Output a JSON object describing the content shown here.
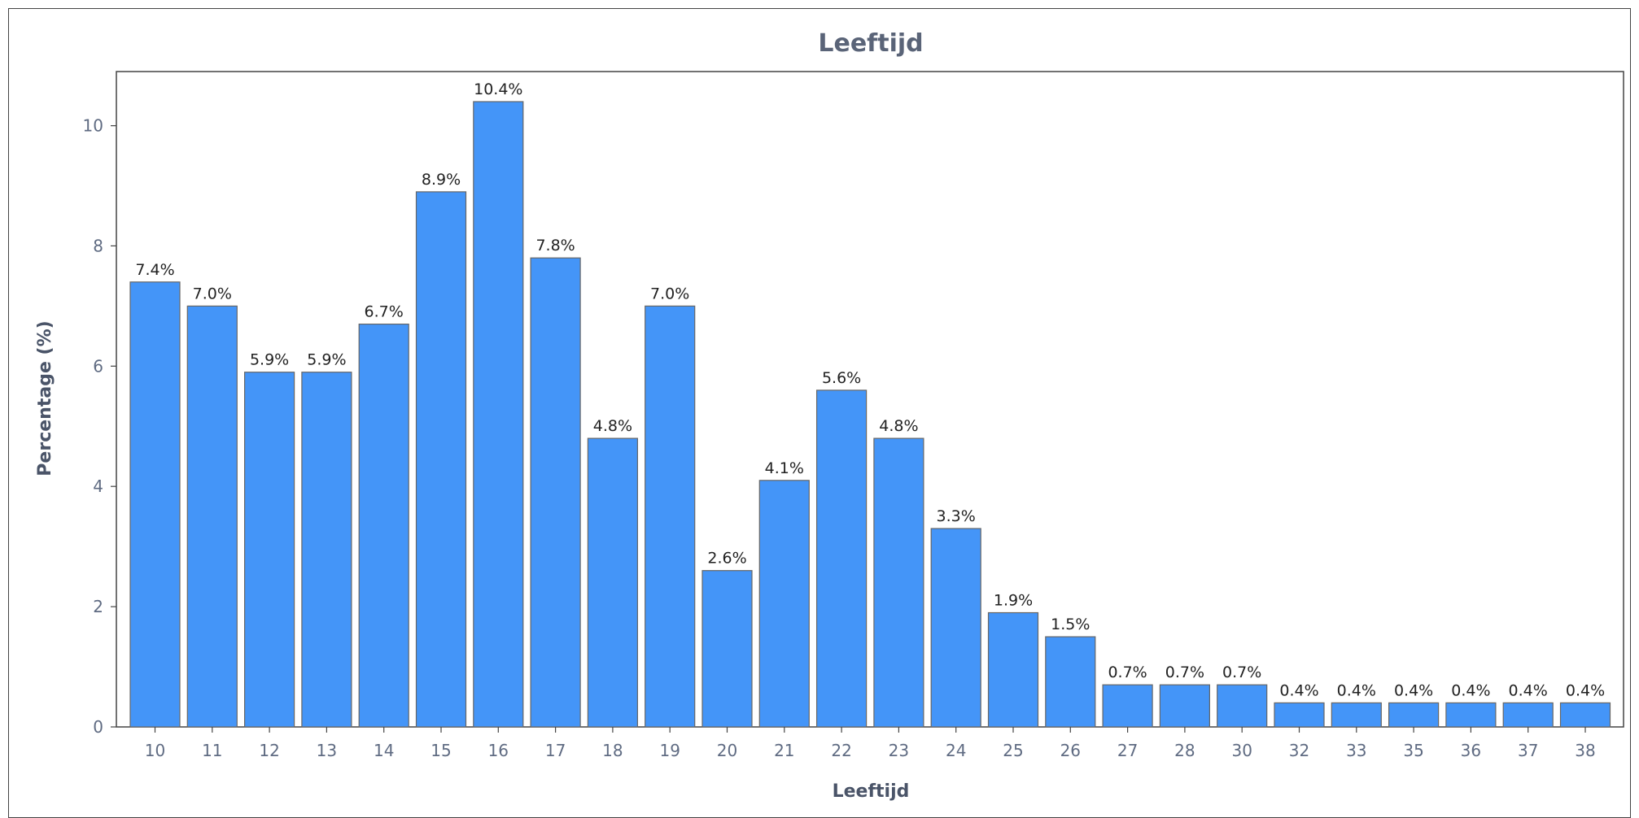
{
  "chart_data": {
    "type": "bar",
    "title": "Leeftijd",
    "xlabel": "Leeftijd",
    "ylabel": "Percentage (%)",
    "categories": [
      "10",
      "11",
      "12",
      "13",
      "14",
      "15",
      "16",
      "17",
      "18",
      "19",
      "20",
      "21",
      "22",
      "23",
      "24",
      "25",
      "26",
      "27",
      "28",
      "30",
      "32",
      "33",
      "35",
      "36",
      "37",
      "38"
    ],
    "values": [
      7.4,
      7.0,
      5.9,
      5.9,
      6.7,
      8.9,
      10.4,
      7.8,
      4.8,
      7.0,
      2.6,
      4.1,
      5.6,
      4.8,
      3.3,
      1.9,
      1.5,
      0.7,
      0.7,
      0.7,
      0.4,
      0.4,
      0.4,
      0.4,
      0.4,
      0.4
    ],
    "data_labels": [
      "7.4%",
      "7.0%",
      "5.9%",
      "5.9%",
      "6.7%",
      "8.9%",
      "10.4%",
      "7.8%",
      "4.8%",
      "7.0%",
      "2.6%",
      "4.1%",
      "5.6%",
      "4.8%",
      "3.3%",
      "1.9%",
      "1.5%",
      "0.7%",
      "0.7%",
      "0.7%",
      "0.4%",
      "0.4%",
      "0.4%",
      "0.4%",
      "0.4%",
      "0.4%"
    ],
    "yticks": [
      0,
      2,
      4,
      6,
      8,
      10
    ],
    "ylim": [
      0,
      10.9
    ],
    "grid": false,
    "colors": {
      "bar": "#4495f8",
      "bar_edge": "#666666",
      "title": "#5a6478"
    }
  }
}
